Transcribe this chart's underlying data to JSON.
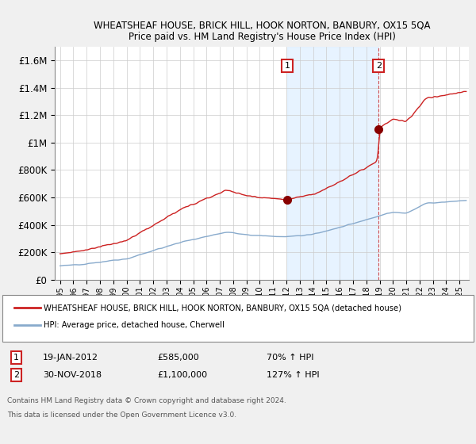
{
  "title": "WHEATSHEAF HOUSE, BRICK HILL, HOOK NORTON, BANBURY, OX15 5QA",
  "subtitle": "Price paid vs. HM Land Registry's House Price Index (HPI)",
  "plot_bg_color": "#ffffff",
  "fig_bg_color": "#f8f8f8",
  "ylim": [
    0,
    1700000
  ],
  "yticks": [
    0,
    200000,
    400000,
    600000,
    800000,
    1000000,
    1200000,
    1400000,
    1600000
  ],
  "sale1_year": 2012.05,
  "sale1_price": 585000,
  "sale2_year": 2018.92,
  "sale2_price": 1100000,
  "red_line_color": "#cc2222",
  "blue_line_color": "#88aacc",
  "shade_color": "#ddeeff",
  "vline_color": "#cc2222",
  "legend_label_red": "WHEATSHEAF HOUSE, BRICK HILL, HOOK NORTON, BANBURY, OX15 5QA (detached house)",
  "legend_label_blue": "HPI: Average price, detached house, Cherwell",
  "footer1": "Contains HM Land Registry data © Crown copyright and database right 2024.",
  "footer2": "This data is licensed under the Open Government Licence v3.0.",
  "annotation1": [
    "1",
    "19-JAN-2012",
    "£585,000",
    "70% ↑ HPI"
  ],
  "annotation2": [
    "2",
    "30-NOV-2018",
    "£1,100,000",
    "127% ↑ HPI"
  ]
}
